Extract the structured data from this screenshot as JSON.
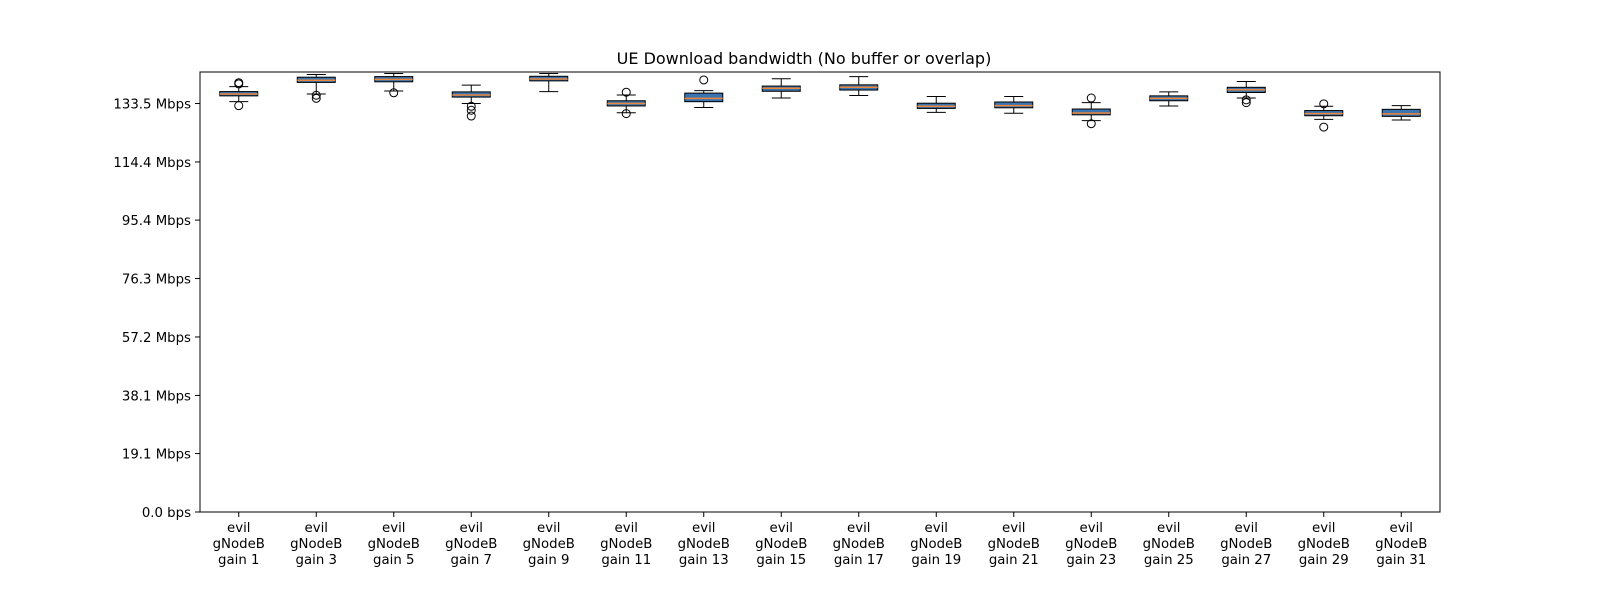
{
  "chart_data": {
    "type": "box",
    "title": "UE Download bandwidth (No buffer or overlap)",
    "xlabel": "",
    "ylabel": "",
    "unit": "Mbps",
    "ylim": [
      0,
      143.8
    ],
    "yticks": [
      0,
      19.1,
      38.1,
      57.2,
      76.3,
      95.4,
      114.4,
      133.5
    ],
    "ytick_labels": [
      "0.0 bps",
      "19.1 Mbps",
      "38.1 Mbps",
      "57.2 Mbps",
      "76.3 Mbps",
      "95.4 Mbps",
      "114.4 Mbps",
      "133.5 Mbps"
    ],
    "grid": false,
    "categories": [
      [
        "evil",
        "gNodeB",
        "gain 1"
      ],
      [
        "evil",
        "gNodeB",
        "gain 3"
      ],
      [
        "evil",
        "gNodeB",
        "gain 5"
      ],
      [
        "evil",
        "gNodeB",
        "gain 7"
      ],
      [
        "evil",
        "gNodeB",
        "gain 9"
      ],
      [
        "evil",
        "gNodeB",
        "gain 11"
      ],
      [
        "evil",
        "gNodeB",
        "gain 13"
      ],
      [
        "evil",
        "gNodeB",
        "gain 15"
      ],
      [
        "evil",
        "gNodeB",
        "gain 17"
      ],
      [
        "evil",
        "gNodeB",
        "gain 19"
      ],
      [
        "evil",
        "gNodeB",
        "gain 21"
      ],
      [
        "evil",
        "gNodeB",
        "gain 23"
      ],
      [
        "evil",
        "gNodeB",
        "gain 25"
      ],
      [
        "evil",
        "gNodeB",
        "gain 27"
      ],
      [
        "evil",
        "gNodeB",
        "gain 29"
      ],
      [
        "evil",
        "gNodeB",
        "gain 31"
      ]
    ],
    "boxes": [
      {
        "whislo": 134.1,
        "q1": 136.0,
        "med": 136.6,
        "q3": 137.4,
        "whishi": 139.0,
        "fliers": [
          139.9,
          140.3,
          132.8
        ]
      },
      {
        "whislo": 136.6,
        "q1": 140.4,
        "med": 141.1,
        "q3": 142.1,
        "whishi": 143.0,
        "fliers": [
          136.2,
          135.2
        ]
      },
      {
        "whislo": 137.6,
        "q1": 140.6,
        "med": 141.4,
        "q3": 142.3,
        "whishi": 143.3,
        "fliers": [
          137.0
        ]
      },
      {
        "whislo": 133.5,
        "q1": 135.6,
        "med": 136.3,
        "q3": 137.3,
        "whishi": 139.5,
        "fliers": [
          132.6,
          131.3,
          129.4
        ]
      },
      {
        "whislo": 137.4,
        "q1": 140.9,
        "med": 141.5,
        "q3": 142.4,
        "whishi": 143.3,
        "fliers": []
      },
      {
        "whislo": 130.5,
        "q1": 132.7,
        "med": 133.5,
        "q3": 134.4,
        "whishi": 136.3,
        "fliers": [
          137.2,
          130.2
        ]
      },
      {
        "whislo": 132.2,
        "q1": 134.1,
        "med": 135.2,
        "q3": 136.9,
        "whishi": 137.7,
        "fliers": [
          141.2
        ]
      },
      {
        "whislo": 135.3,
        "q1": 137.5,
        "med": 138.5,
        "q3": 139.2,
        "whishi": 141.6,
        "fliers": []
      },
      {
        "whislo": 136.1,
        "q1": 137.9,
        "med": 138.8,
        "q3": 139.6,
        "whishi": 142.3,
        "fliers": []
      },
      {
        "whislo": 130.6,
        "q1": 131.9,
        "med": 132.6,
        "q3": 133.6,
        "whishi": 135.8,
        "fliers": []
      },
      {
        "whislo": 130.3,
        "q1": 132.1,
        "med": 132.8,
        "q3": 134.0,
        "whishi": 135.8,
        "fliers": []
      },
      {
        "whislo": 127.9,
        "q1": 129.8,
        "med": 130.4,
        "q3": 131.7,
        "whishi": 133.8,
        "fliers": [
          135.3,
          126.9
        ]
      },
      {
        "whislo": 132.7,
        "q1": 134.4,
        "med": 135.2,
        "q3": 136.0,
        "whishi": 137.3,
        "fliers": []
      },
      {
        "whislo": 135.3,
        "q1": 137.1,
        "med": 138.0,
        "q3": 138.8,
        "whishi": 140.7,
        "fliers": [
          134.7,
          133.8
        ]
      },
      {
        "whislo": 128.3,
        "q1": 129.5,
        "med": 130.2,
        "q3": 131.2,
        "whishi": 132.6,
        "fliers": [
          133.4,
          125.8
        ]
      },
      {
        "whislo": 128.1,
        "q1": 129.3,
        "med": 130.1,
        "q3": 131.6,
        "whishi": 132.8,
        "fliers": []
      }
    ],
    "colors": {
      "box": "#3b75af",
      "median": "#ef8536",
      "line": "#000000"
    }
  }
}
